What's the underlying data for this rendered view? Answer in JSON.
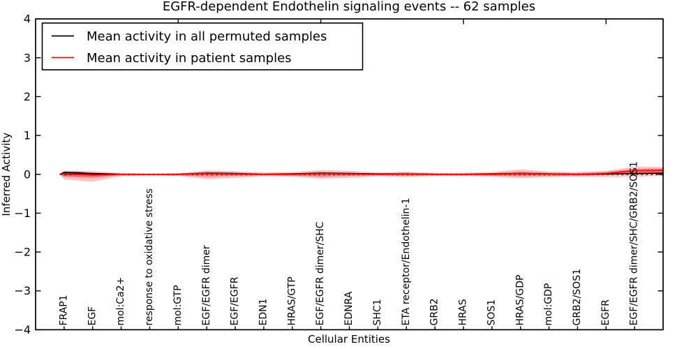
{
  "legend": {
    "entries": [
      {
        "label": "Mean activity in all permuted samples",
        "color": "#000000"
      },
      {
        "label": "Mean activity in patient samples",
        "color": "#ff0000"
      }
    ]
  },
  "chart_data": {
    "type": "line",
    "title": "EGFR-dependent Endothelin signaling events -- 62 samples",
    "xlabel": "Cellular Entities",
    "ylabel": "Inferred Activity",
    "ylim": [
      -4,
      4
    ],
    "grid": false,
    "legend_position": "upper left",
    "yticks": {
      "values": [
        4,
        3,
        2,
        1,
        0,
        -1,
        -2,
        -3,
        -4
      ],
      "labels": [
        "4",
        "3",
        "2",
        "1",
        "0",
        "−1",
        "−2",
        "−3",
        "−4"
      ]
    },
    "x_major_ticks": [
      5,
      10,
      15,
      20
    ],
    "zero_line_span": [
      0.85,
      22
    ],
    "categories": [
      "FRAP1",
      "EGF",
      "mol:Ca2+",
      "response to oxidative stress",
      "mol:GTP",
      "EGF/EGFR dimer",
      "EGF/EGFR",
      "EDN1",
      "HRAS/GTP",
      "EGF/EGFR dimer/SHC",
      "EDNRA",
      "SHC1",
      "ETA receptor/Endothelin-1",
      "GRB2",
      "HRAS",
      "SOS1",
      "HRAS/GDP",
      "mol:GDP",
      "GRB2/SOS1",
      "EGFR",
      "EGF/EGFR dimer/SHC/GRB2/SOS1"
    ],
    "series": [
      {
        "name": "Mean activity in all permuted samples",
        "color": "#000000",
        "x": [
          0.85,
          1,
          2,
          3,
          4,
          5,
          6,
          7,
          8,
          9,
          10,
          11,
          12,
          13,
          14,
          15,
          16,
          17,
          18,
          19,
          20,
          21,
          22
        ],
        "values": [
          0,
          0.05,
          0.02,
          0,
          0,
          0,
          0.03,
          0.02,
          0,
          0.01,
          0.03,
          0.02,
          0.01,
          0.01,
          0,
          0,
          0.01,
          0.02,
          0.01,
          0,
          0.01,
          0.02,
          0.03
        ]
      },
      {
        "name": "Mean activity in patient samples",
        "color": "#ff0000",
        "x": [
          0.85,
          1,
          2,
          3,
          4,
          5,
          6,
          7,
          8,
          9,
          10,
          11,
          12,
          13,
          14,
          15,
          16,
          17,
          18,
          19,
          20,
          21,
          22
        ],
        "values": [
          0,
          0.02,
          -0.02,
          0,
          0,
          0,
          0.02,
          0.01,
          0,
          0,
          0.02,
          0.01,
          0,
          0.01,
          0,
          0,
          0,
          0.02,
          0.01,
          0,
          0.02,
          0.09,
          0.1
        ]
      }
    ],
    "bands": [
      {
        "name": "permuted-samples-band",
        "color": "#333333",
        "opacity": 0.55,
        "x": [
          0.85,
          1,
          1.5,
          2,
          2.7
        ],
        "upper": [
          0,
          0.06,
          0.07,
          0.03,
          0
        ],
        "lower": [
          0,
          -0.03,
          -0.02,
          -0.01,
          0
        ]
      },
      {
        "name": "patient-band-outer",
        "color": "#ff0000",
        "opacity": 0.24,
        "x": [
          0.85,
          1,
          2,
          3,
          4,
          5,
          6,
          7,
          8,
          9,
          10,
          11,
          12,
          13,
          14,
          15,
          16,
          17,
          18,
          19,
          20,
          21,
          22
        ],
        "upper": [
          0,
          0.1,
          0.08,
          0.04,
          0.02,
          0.03,
          0.1,
          0.08,
          0.05,
          0.06,
          0.11,
          0.09,
          0.05,
          0.07,
          0.04,
          0.04,
          0.06,
          0.13,
          0.07,
          0.06,
          0.09,
          0.2,
          0.19
        ],
        "lower": [
          0,
          -0.13,
          -0.19,
          -0.05,
          -0.03,
          -0.04,
          -0.12,
          -0.09,
          -0.05,
          -0.06,
          -0.11,
          -0.09,
          -0.05,
          -0.07,
          -0.04,
          -0.04,
          -0.06,
          -0.1,
          -0.07,
          -0.06,
          -0.07,
          -0.06,
          -0.04
        ]
      },
      {
        "name": "patient-band-inner",
        "color": "#ff0000",
        "opacity": 0.38,
        "x": [
          0.85,
          1,
          2,
          3,
          4,
          5,
          6,
          7,
          8,
          9,
          10,
          11,
          12,
          13,
          14,
          15,
          16,
          17,
          18,
          19,
          20,
          21,
          22
        ],
        "upper": [
          0,
          0.05,
          0.04,
          0.02,
          0.01,
          0.02,
          0.06,
          0.04,
          0.02,
          0.03,
          0.06,
          0.04,
          0.02,
          0.04,
          0.02,
          0.02,
          0.03,
          0.07,
          0.04,
          0.03,
          0.06,
          0.14,
          0.15
        ],
        "lower": [
          0,
          -0.06,
          -0.09,
          -0.02,
          -0.01,
          -0.02,
          -0.06,
          -0.04,
          -0.02,
          -0.03,
          -0.06,
          -0.04,
          -0.02,
          -0.04,
          -0.02,
          -0.02,
          -0.03,
          -0.05,
          -0.04,
          -0.03,
          -0.02,
          0.02,
          0.04
        ]
      }
    ]
  }
}
